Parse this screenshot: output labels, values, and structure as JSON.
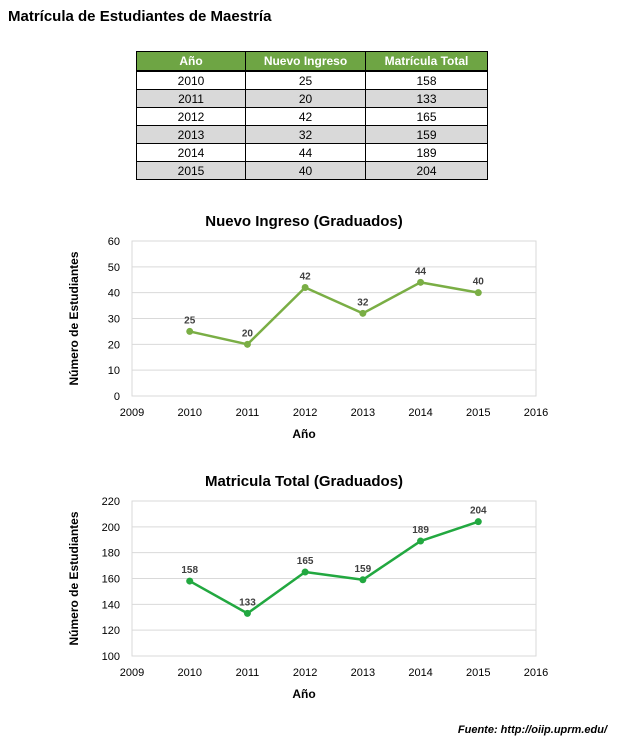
{
  "page_title": "Matrícula de Estudiantes de Maestría",
  "table": {
    "headers": [
      "Año",
      "Nuevo Ingreso",
      "Matrícula Total"
    ],
    "rows": [
      [
        "2010",
        "25",
        "158"
      ],
      [
        "2011",
        "20",
        "133"
      ],
      [
        "2012",
        "42",
        "165"
      ],
      [
        "2013",
        "32",
        "159"
      ],
      [
        "2014",
        "44",
        "189"
      ],
      [
        "2015",
        "40",
        "204"
      ]
    ]
  },
  "colors": {
    "header_green": "#6ea544",
    "row_shade": "#d9d9d9",
    "series1": "#7aae45",
    "series2": "#22a840",
    "grid": "#d9d9d9"
  },
  "chart_data": [
    {
      "type": "line",
      "title": "Nuevo Ingreso (Graduados)",
      "xlabel": "Año",
      "ylabel": "Número de Estudiantes",
      "x": [
        2010,
        2011,
        2012,
        2013,
        2014,
        2015
      ],
      "y": [
        25,
        20,
        42,
        32,
        44,
        40
      ],
      "data_labels": [
        "25",
        "20",
        "42",
        "32",
        "44",
        "40"
      ],
      "xlim": [
        2009,
        2016
      ],
      "ylim": [
        0,
        60
      ],
      "x_ticks": [
        2009,
        2010,
        2011,
        2012,
        2013,
        2014,
        2015,
        2016
      ],
      "y_ticks": [
        0,
        10,
        20,
        30,
        40,
        50,
        60
      ],
      "grid": true,
      "color": "#7aae45"
    },
    {
      "type": "line",
      "title": "Matricula Total (Graduados)",
      "xlabel": "Año",
      "ylabel": "Número de Estudiantes",
      "x": [
        2010,
        2011,
        2012,
        2013,
        2014,
        2015
      ],
      "y": [
        158,
        133,
        165,
        159,
        189,
        204
      ],
      "data_labels": [
        "158",
        "133",
        "165",
        "159",
        "189",
        "204"
      ],
      "xlim": [
        2009,
        2016
      ],
      "ylim": [
        100,
        220
      ],
      "x_ticks": [
        2009,
        2010,
        2011,
        2012,
        2013,
        2014,
        2015,
        2016
      ],
      "y_ticks": [
        100,
        120,
        140,
        160,
        180,
        200,
        220
      ],
      "grid": true,
      "color": "#22a840"
    }
  ],
  "source": "Fuente: http://oiip.uprm.edu/"
}
